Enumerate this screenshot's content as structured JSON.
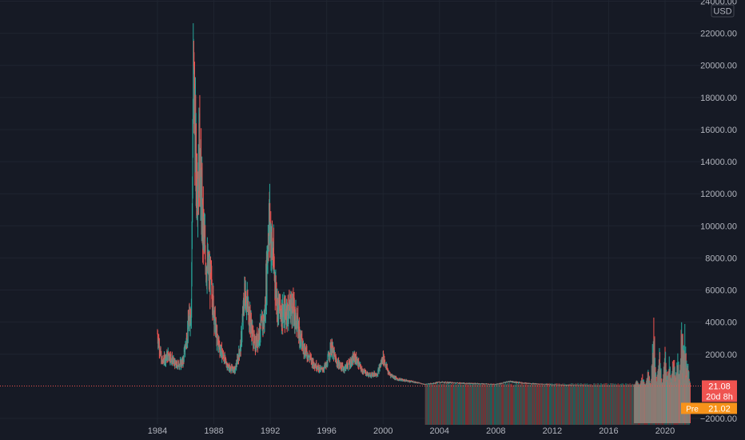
{
  "chart_data": {
    "type": "candlestick",
    "currency_label": "USD",
    "y_ticks": [
      24000,
      22000,
      20000,
      18000,
      16000,
      14000,
      12000,
      10000,
      8000,
      6000,
      4000,
      2000,
      -2000
    ],
    "y_tick_labels": [
      "24000.00",
      "22000.00",
      "20000.00",
      "18000.00",
      "16000.00",
      "14000.00",
      "12000.00",
      "10000.00",
      "8000.00",
      "6000.00",
      "4000.00",
      "2000.00",
      "−2000.00"
    ],
    "ylim": [
      -2000,
      24000
    ],
    "x_ticks": [
      1984,
      1988,
      1992,
      1996,
      2000,
      2004,
      2008,
      2012,
      2016,
      2020
    ],
    "x_tick_labels": [
      "1984",
      "1988",
      "1992",
      "1996",
      "2000",
      "2004",
      "2008",
      "2012",
      "2016",
      "2020"
    ],
    "xlim": [
      1983.9,
      2021.9
    ],
    "last_price": 21.08,
    "last_price_label": "21.08",
    "countdown_label": "20d 8h",
    "pre_market_tag": "Pre",
    "pre_market_price_label": "21.02",
    "grid": true,
    "colors": {
      "up": "#26a69a",
      "down": "#ef5350",
      "volume_up": "#1f5e5a",
      "volume_down": "#7a2f33",
      "price_line": "#ef5350",
      "last_price_bg": "#ef5350",
      "pre_market_bg": "#f7931a",
      "background": "#161a25"
    },
    "anchors": [
      [
        1984.0,
        3300
      ],
      [
        1984.3,
        1500
      ],
      [
        1984.8,
        2000
      ],
      [
        1985.3,
        1300
      ],
      [
        1985.8,
        1500
      ],
      [
        1986.1,
        3200
      ],
      [
        1986.4,
        5000
      ],
      [
        1986.55,
        20000
      ],
      [
        1986.75,
        13000
      ],
      [
        1987.0,
        14500
      ],
      [
        1987.2,
        10000
      ],
      [
        1987.5,
        7500
      ],
      [
        1987.8,
        6500
      ],
      [
        1988.2,
        3000
      ],
      [
        1988.6,
        2000
      ],
      [
        1989.0,
        1200
      ],
      [
        1989.5,
        1000
      ],
      [
        1989.9,
        2500
      ],
      [
        1990.2,
        6000
      ],
      [
        1990.6,
        4000
      ],
      [
        1990.9,
        2500
      ],
      [
        1991.3,
        3500
      ],
      [
        1991.6,
        4200
      ],
      [
        1991.9,
        10500
      ],
      [
        1992.1,
        9000
      ],
      [
        1992.5,
        5000
      ],
      [
        1993.0,
        4500
      ],
      [
        1993.5,
        5000
      ],
      [
        1993.9,
        4000
      ],
      [
        1994.3,
        2500
      ],
      [
        1995.0,
        1500
      ],
      [
        1995.6,
        1000
      ],
      [
        1996.0,
        1300
      ],
      [
        1996.3,
        2500
      ],
      [
        1996.7,
        1500
      ],
      [
        1997.2,
        1100
      ],
      [
        1997.7,
        1500
      ],
      [
        1998.0,
        1800
      ],
      [
        1998.5,
        1000
      ],
      [
        1999.0,
        700
      ],
      [
        1999.6,
        800
      ],
      [
        2000.0,
        1800
      ],
      [
        2000.4,
        800
      ],
      [
        2001.0,
        450
      ],
      [
        2002.0,
        300
      ],
      [
        2003.0,
        120
      ],
      [
        2004.0,
        250
      ],
      [
        2005.0,
        220
      ],
      [
        2006.0,
        180
      ],
      [
        2007.0,
        160
      ],
      [
        2008.0,
        120
      ],
      [
        2009.0,
        300
      ],
      [
        2010.0,
        200
      ],
      [
        2011.0,
        150
      ],
      [
        2012.0,
        100
      ],
      [
        2013.0,
        70
      ],
      [
        2014.0,
        50
      ],
      [
        2015.0,
        35
      ],
      [
        2016.0,
        30
      ],
      [
        2017.0,
        25
      ],
      [
        2018.0,
        22
      ],
      [
        2019.0,
        20
      ],
      [
        2020.0,
        22
      ],
      [
        2021.7,
        21
      ]
    ],
    "volume_spikes": [
      [
        2018.0,
        400
      ],
      [
        2018.4,
        700
      ],
      [
        2018.8,
        1000
      ],
      [
        2019.2,
        4300
      ],
      [
        2019.6,
        2400
      ],
      [
        2020.0,
        2500
      ],
      [
        2020.3,
        1800
      ],
      [
        2020.6,
        2200
      ],
      [
        2020.9,
        2000
      ],
      [
        2021.2,
        4500
      ],
      [
        2021.4,
        3700
      ],
      [
        2021.6,
        1500
      ]
    ]
  }
}
